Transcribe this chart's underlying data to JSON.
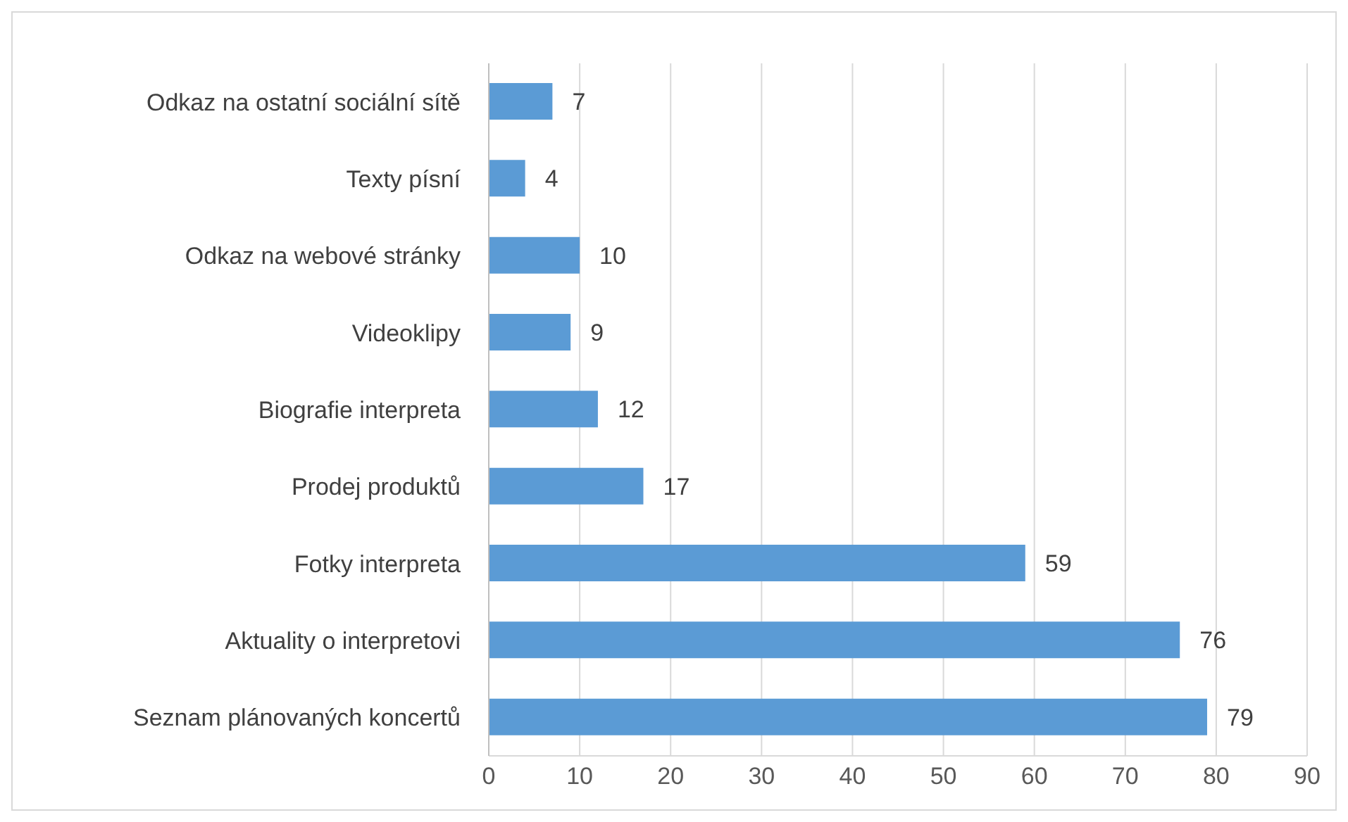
{
  "chart_data": {
    "type": "bar",
    "orientation": "horizontal",
    "categories": [
      "Odkaz na ostatní sociální sítě",
      "Texty písní",
      "Odkaz na webové stránky",
      "Videoklipy",
      "Biografie interpreta",
      "Prodej produktů",
      "Fotky interpreta",
      "Aktuality o interpretovi",
      "Seznam plánovaných koncertů"
    ],
    "values": [
      7,
      4,
      10,
      9,
      12,
      17,
      59,
      76,
      79
    ],
    "color": "#5b9bd5",
    "xlim": [
      0,
      90
    ],
    "xticks": [
      0,
      10,
      20,
      30,
      40,
      50,
      60,
      70,
      80,
      90
    ],
    "grid": "x",
    "data_labels": true
  }
}
